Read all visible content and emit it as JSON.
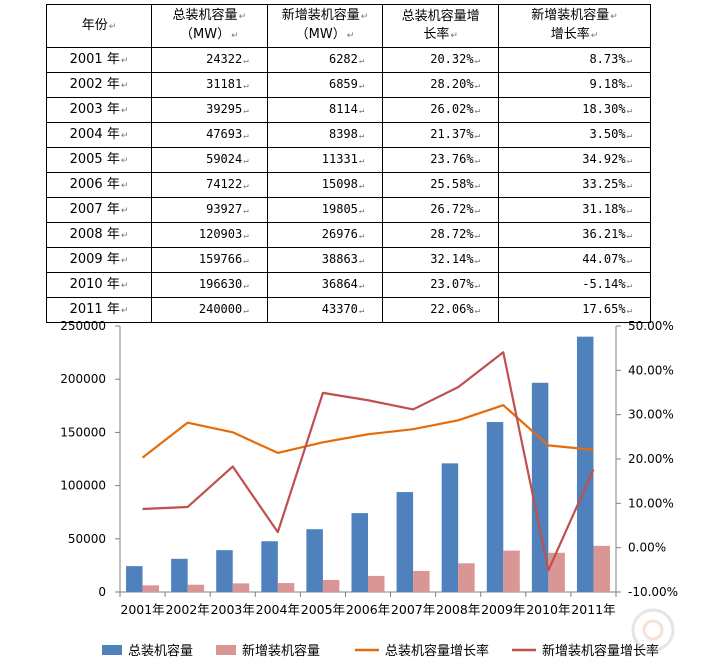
{
  "table": {
    "headers": [
      [
        "年份",
        ""
      ],
      [
        "总装机容量",
        "（MW）"
      ],
      [
        "新增装机容量",
        "（MW）"
      ],
      [
        "总装机容量增",
        "长率"
      ],
      [
        "新增装机容量",
        "增长率"
      ]
    ],
    "rows": [
      [
        "2001 年",
        "24322",
        "6282",
        "20.32%",
        "8.73%"
      ],
      [
        "2002 年",
        "31181",
        "6859",
        "28.20%",
        "9.18%"
      ],
      [
        "2003 年",
        "39295",
        "8114",
        "26.02%",
        "18.30%"
      ],
      [
        "2004 年",
        "47693",
        "8398",
        "21.37%",
        "3.50%"
      ],
      [
        "2005 年",
        "59024",
        "11331",
        "23.76%",
        "34.92%"
      ],
      [
        "2006 年",
        "74122",
        "15098",
        "25.58%",
        "33.25%"
      ],
      [
        "2007 年",
        "93927",
        "19805",
        "26.72%",
        "31.18%"
      ],
      [
        "2008 年",
        "120903",
        "26976",
        "28.72%",
        "36.21%"
      ],
      [
        "2009 年",
        "159766",
        "38863",
        "32.14%",
        "44.07%"
      ],
      [
        "2010 年",
        "196630",
        "36864",
        "23.07%",
        "-5.14%"
      ],
      [
        "2011 年",
        "240000",
        "43370",
        "22.06%",
        "17.65%"
      ]
    ]
  },
  "chart_data": {
    "type": "bar",
    "categories": [
      "2001年",
      "2002年",
      "2003年",
      "2004年",
      "2005年",
      "2006年",
      "2007年",
      "2008年",
      "2009年",
      "2010年",
      "2011年"
    ],
    "y_left": {
      "min": 0,
      "max": 250000,
      "step": 50000,
      "ticks": [
        "0",
        "50000",
        "100000",
        "150000",
        "200000",
        "250000"
      ]
    },
    "y_right": {
      "min": -10,
      "max": 50,
      "step": 10,
      "ticks": [
        "-10.00%",
        "0.00%",
        "10.00%",
        "20.00%",
        "30.00%",
        "40.00%",
        "50.00%"
      ]
    },
    "series": [
      {
        "name": "总装机容量",
        "type": "bar",
        "axis": "left",
        "color": "#4F81BD",
        "values": [
          24322,
          31181,
          39295,
          47693,
          59024,
          74122,
          93927,
          120903,
          159766,
          196630,
          240000
        ]
      },
      {
        "name": "新增装机容量",
        "type": "bar",
        "axis": "left",
        "color": "#D99694",
        "values": [
          6282,
          6859,
          8114,
          8398,
          11331,
          15098,
          19805,
          26976,
          38863,
          36864,
          43370
        ]
      },
      {
        "name": "总装机容量增长率",
        "type": "line",
        "axis": "right",
        "color": "#E46C0A",
        "values": [
          20.32,
          28.2,
          26.02,
          21.37,
          23.76,
          25.58,
          26.72,
          28.72,
          32.14,
          23.07,
          22.06
        ]
      },
      {
        "name": "新增装机容量增长率",
        "type": "line",
        "axis": "right",
        "color": "#C0504D",
        "values": [
          8.73,
          9.18,
          18.3,
          3.5,
          34.92,
          33.25,
          31.18,
          36.21,
          44.07,
          -5.14,
          17.65
        ]
      }
    ],
    "legend_position": "bottom",
    "grid": false
  }
}
